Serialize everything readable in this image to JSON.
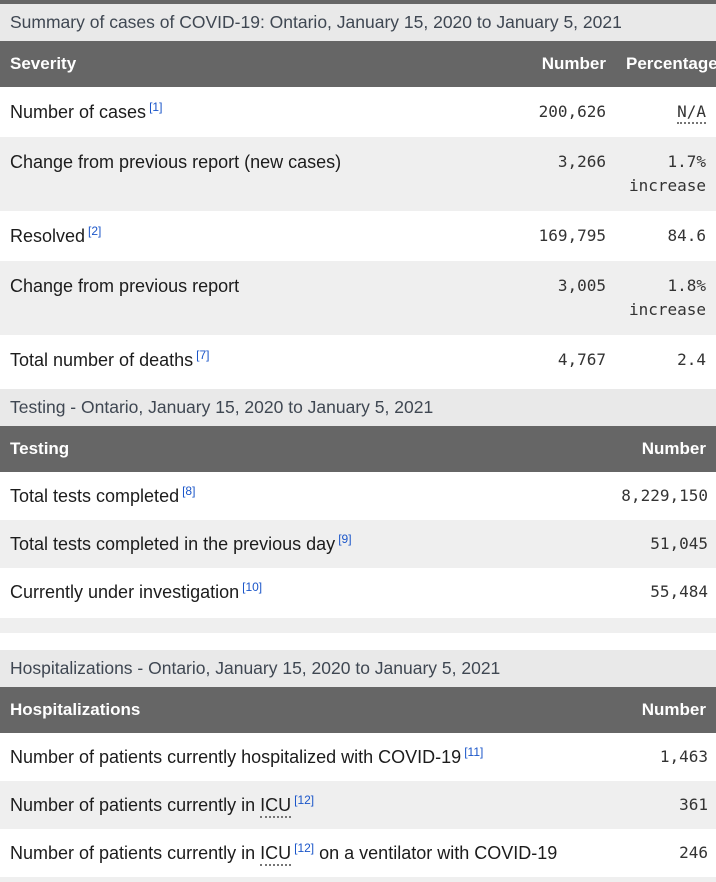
{
  "colors": {
    "header_bg": "#666666",
    "caption_bg": "#e9e9e9",
    "row_alt_bg": "#efefef",
    "link_blue": "#1b56c9"
  },
  "tables": [
    {
      "caption": "Summary of cases of COVID-19: Ontario, January 15, 2020 to January 5, 2021",
      "columns": {
        "label": "Severity",
        "number": "Number",
        "percentage": "Percentage"
      },
      "rows": [
        {
          "label_pre": "Number of cases",
          "footnote": "[1]",
          "number": "200,626",
          "pct1": "N/A"
        },
        {
          "label_pre": "Change from previous report (new cases)",
          "number": "3,266",
          "pct1": "1.7%",
          "pct2": "increase"
        },
        {
          "label_pre": "Resolved",
          "footnote": "[2]",
          "number": "169,795",
          "pct1": "84.6"
        },
        {
          "label_pre": "Change from previous report",
          "number": "3,005",
          "pct1": "1.8%",
          "pct2": "increase"
        },
        {
          "label_pre": "Total number of deaths",
          "footnote": "[7]",
          "number": "4,767",
          "pct1": "2.4"
        }
      ]
    },
    {
      "caption": "Testing - Ontario, January 15, 2020 to January 5, 2021",
      "columns": {
        "label": "Testing",
        "number": "Number"
      },
      "rows": [
        {
          "label_pre": "Total tests completed",
          "footnote": "[8]",
          "number": "8,229,150"
        },
        {
          "label_pre": "Total tests completed in the previous day",
          "footnote": "[9]",
          "number": "51,045"
        },
        {
          "label_pre": "Currently under investigation",
          "footnote": "[10]",
          "number": "55,484"
        }
      ]
    },
    {
      "caption": "Hospitalizations - Ontario, January 15, 2020 to January 5, 2021",
      "columns": {
        "label": "Hospitalizations",
        "number": "Number"
      },
      "rows": [
        {
          "label_pre": "Number of patients currently hospitalized with COVID-19",
          "footnote": "[11]",
          "number": "1,463"
        },
        {
          "label_pre": "Number of patients currently in ",
          "label_abbr": "ICU",
          "footnote": "[12]",
          "number": "361"
        },
        {
          "label_pre": "Number of patients currently in ",
          "label_abbr": "ICU",
          "footnote": "[12]",
          "label_post": " on a ventilator with COVID-19",
          "number": "246"
        }
      ]
    }
  ]
}
